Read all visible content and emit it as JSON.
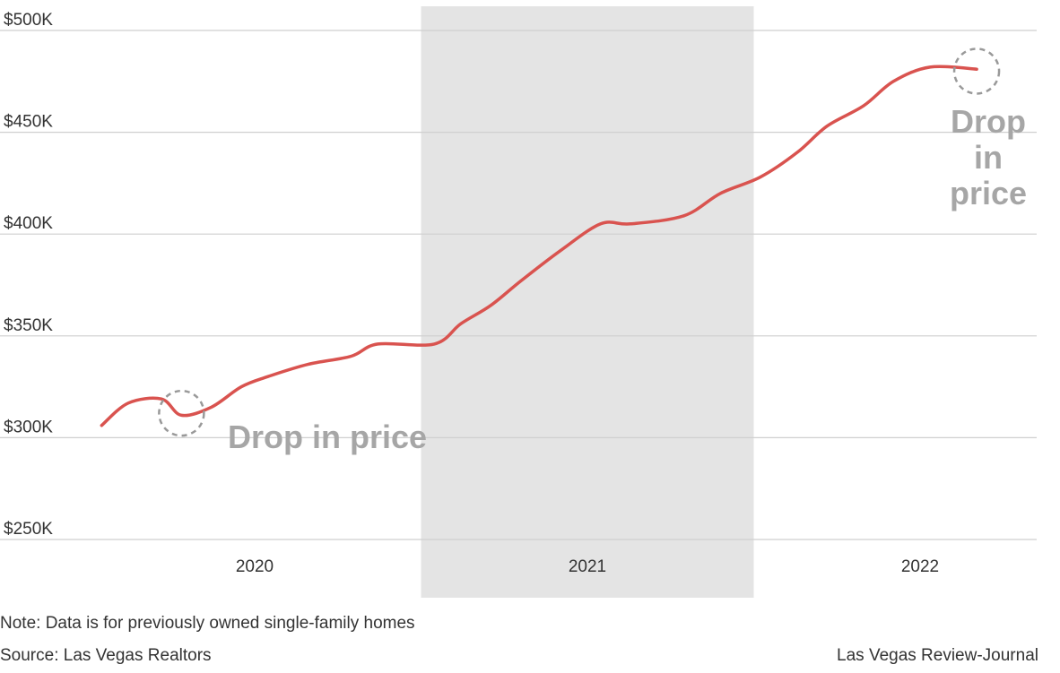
{
  "chart_data": {
    "type": "line",
    "title": "",
    "xlabel": "",
    "ylabel": "",
    "x_tick_labels": [
      {
        "label": "2020",
        "x": 2020.0
      },
      {
        "label": "2021",
        "x": 2021.0
      },
      {
        "label": "2022",
        "x": 2022.0
      }
    ],
    "y_tick_labels": [
      "$250K",
      "$300K",
      "$350K",
      "$400K",
      "$450K",
      "$500K"
    ],
    "y_tick_values": [
      250,
      300,
      350,
      400,
      450,
      500
    ],
    "ylim": [
      250,
      500
    ],
    "xlim": [
      2019.5,
      2022.5
    ],
    "grid": "horizontal",
    "highlight_band": {
      "x_start": 2020.5,
      "x_end": 2021.5,
      "color": "#e4e4e4"
    },
    "line_color": "#d9534f",
    "series": [
      {
        "points": [
          {
            "x": 2019.54,
            "y": 306
          },
          {
            "x": 2019.62,
            "y": 317
          },
          {
            "x": 2019.72,
            "y": 319
          },
          {
            "x": 2019.78,
            "y": 311
          },
          {
            "x": 2019.87,
            "y": 315
          },
          {
            "x": 2019.96,
            "y": 325
          },
          {
            "x": 2020.04,
            "y": 330
          },
          {
            "x": 2020.16,
            "y": 336
          },
          {
            "x": 2020.29,
            "y": 340
          },
          {
            "x": 2020.37,
            "y": 346
          },
          {
            "x": 2020.54,
            "y": 346
          },
          {
            "x": 2020.62,
            "y": 356
          },
          {
            "x": 2020.71,
            "y": 365
          },
          {
            "x": 2020.8,
            "y": 377
          },
          {
            "x": 2020.92,
            "y": 392
          },
          {
            "x": 2021.04,
            "y": 405
          },
          {
            "x": 2021.13,
            "y": 405
          },
          {
            "x": 2021.29,
            "y": 409
          },
          {
            "x": 2021.4,
            "y": 420
          },
          {
            "x": 2021.52,
            "y": 428
          },
          {
            "x": 2021.63,
            "y": 440
          },
          {
            "x": 2021.72,
            "y": 453
          },
          {
            "x": 2021.83,
            "y": 463
          },
          {
            "x": 2021.92,
            "y": 475
          },
          {
            "x": 2022.03,
            "y": 482
          },
          {
            "x": 2022.17,
            "y": 481
          }
        ]
      }
    ],
    "annotations": [
      {
        "text": "Drop in price",
        "lines": [
          "Drop in price"
        ],
        "circle_at": {
          "x": 2019.78,
          "y": 312
        }
      },
      {
        "text": "Drop in price",
        "lines": [
          "Drop",
          "in",
          "price"
        ],
        "circle_at": {
          "x": 2022.17,
          "y": 480
        }
      }
    ]
  },
  "footer": {
    "note": "Note: Data is for previously owned single-family homes",
    "source": "Source: Las Vegas Realtors",
    "credit": "Las Vegas Review-Journal"
  }
}
